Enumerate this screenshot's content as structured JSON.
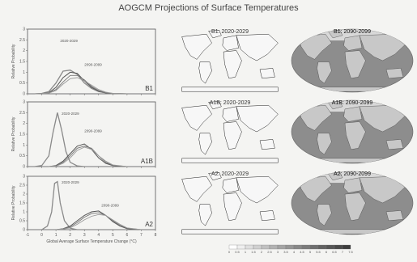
{
  "title": "AOGCM Projections of Surface Temperatures",
  "chart_data": [
    {
      "type": "line",
      "panel_label": "B1",
      "ylabel": "Relative Probability",
      "xlabel": "",
      "xlim": [
        -1,
        8
      ],
      "ylim": [
        0,
        3
      ],
      "yticks": [
        "0",
        "0.5",
        "1",
        "1.5",
        "2",
        "2.5",
        "3"
      ],
      "annotations": [
        {
          "text": "2020-2029",
          "x": 1.3,
          "y": 2.4
        },
        {
          "text": "2090-2099",
          "x": 3.0,
          "y": 1.3
        }
      ],
      "series": [
        {
          "x": [
            -0.5,
            0,
            0.5,
            1,
            1.5,
            2,
            2.5,
            3,
            3.5,
            4,
            4.5,
            5,
            6
          ],
          "y": [
            0,
            0.02,
            0.1,
            0.5,
            1.05,
            1.1,
            0.9,
            0.5,
            0.25,
            0.1,
            0.04,
            0.01,
            0
          ]
        },
        {
          "x": [
            -0.5,
            0,
            0.5,
            1,
            1.5,
            2,
            2.5,
            3,
            3.5,
            4,
            4.5,
            5,
            6
          ],
          "y": [
            0,
            0.01,
            0.05,
            0.3,
            0.75,
            1.0,
            0.95,
            0.6,
            0.3,
            0.12,
            0.05,
            0.01,
            0
          ]
        },
        {
          "x": [
            -0.5,
            0,
            0.5,
            1,
            1.5,
            2,
            2.5,
            3,
            3.5,
            4,
            4.5,
            5,
            6
          ],
          "y": [
            0,
            0.01,
            0.04,
            0.2,
            0.55,
            0.85,
            0.85,
            0.65,
            0.35,
            0.15,
            0.05,
            0.01,
            0
          ]
        },
        {
          "x": [
            -0.5,
            0,
            0.5,
            1,
            1.5,
            2,
            2.5,
            3,
            3.5,
            4,
            4.5,
            5,
            6
          ],
          "y": [
            0,
            0.01,
            0.03,
            0.15,
            0.45,
            0.7,
            0.75,
            0.6,
            0.4,
            0.2,
            0.08,
            0.02,
            0
          ]
        }
      ]
    },
    {
      "type": "line",
      "panel_label": "A1B",
      "ylabel": "Relative Probability",
      "xlabel": "",
      "xlim": [
        -1,
        8
      ],
      "ylim": [
        0,
        3
      ],
      "yticks": [
        "0",
        "0.5",
        "1",
        "1.5",
        "2",
        "2.5",
        "3"
      ],
      "annotations": [
        {
          "text": "2020-2029",
          "x": 1.4,
          "y": 2.4
        },
        {
          "text": "2090-2099",
          "x": 3.0,
          "y": 1.6
        }
      ],
      "series": [
        {
          "x": [
            -0.5,
            0,
            0.5,
            0.8,
            1.1,
            1.4,
            1.7,
            2,
            2.5,
            3
          ],
          "y": [
            0,
            0.05,
            0.5,
            1.6,
            2.5,
            1.7,
            0.7,
            0.2,
            0.03,
            0
          ]
        },
        {
          "x": [
            0.5,
            1,
            1.5,
            2,
            2.5,
            3,
            3.5,
            4,
            4.5,
            5,
            6
          ],
          "y": [
            0,
            0.05,
            0.25,
            0.6,
            0.95,
            1.05,
            0.8,
            0.4,
            0.15,
            0.05,
            0
          ]
        },
        {
          "x": [
            0.5,
            1,
            1.5,
            2,
            2.5,
            3,
            3.5,
            4,
            4.5,
            5,
            6
          ],
          "y": [
            0,
            0.03,
            0.2,
            0.5,
            0.85,
            0.95,
            0.85,
            0.5,
            0.2,
            0.06,
            0
          ]
        },
        {
          "x": [
            0.5,
            1,
            1.5,
            2,
            2.5,
            3,
            3.5,
            4,
            4.5,
            5,
            6
          ],
          "y": [
            0,
            0.02,
            0.15,
            0.4,
            0.75,
            0.9,
            0.8,
            0.5,
            0.25,
            0.08,
            0
          ]
        }
      ]
    },
    {
      "type": "line",
      "panel_label": "A2",
      "ylabel": "Relative Probability",
      "xlabel": "Global Average Surface Temperature Change (°C)",
      "xlim": [
        -1,
        8
      ],
      "ylim": [
        0,
        3
      ],
      "yticks": [
        "0",
        "0.5",
        "1",
        "1.5",
        "2",
        "2.5",
        "3"
      ],
      "xticks": [
        "-1",
        "0",
        "1",
        "2",
        "3",
        "4",
        "5",
        "6",
        "7",
        "8"
      ],
      "annotations": [
        {
          "text": "2020-2029",
          "x": 1.4,
          "y": 2.6
        },
        {
          "text": "2090-2099",
          "x": 4.2,
          "y": 1.3
        }
      ],
      "series": [
        {
          "x": [
            0,
            0.4,
            0.7,
            0.9,
            1.1,
            1.3,
            1.6,
            2,
            2.5
          ],
          "y": [
            0,
            0.2,
            1.0,
            2.6,
            2.7,
            1.5,
            0.5,
            0.08,
            0
          ]
        },
        {
          "x": [
            1,
            1.5,
            2,
            2.5,
            3,
            3.5,
            4,
            4.5,
            5,
            5.5,
            6,
            7
          ],
          "y": [
            0,
            0.05,
            0.2,
            0.5,
            0.8,
            1.0,
            1.05,
            0.8,
            0.45,
            0.2,
            0.06,
            0
          ]
        },
        {
          "x": [
            1,
            1.5,
            2,
            2.5,
            3,
            3.5,
            4,
            4.5,
            5,
            5.5,
            6,
            7
          ],
          "y": [
            0,
            0.04,
            0.15,
            0.4,
            0.7,
            0.9,
            0.95,
            0.8,
            0.5,
            0.25,
            0.08,
            0
          ]
        },
        {
          "x": [
            1,
            1.5,
            2,
            2.5,
            3,
            3.5,
            4,
            4.5,
            5,
            5.5,
            6,
            7
          ],
          "y": [
            0,
            0.03,
            0.1,
            0.3,
            0.55,
            0.75,
            0.85,
            0.8,
            0.55,
            0.3,
            0.1,
            0
          ]
        }
      ]
    }
  ],
  "maps": [
    {
      "label": "B1: 2020-2029",
      "style": "outline"
    },
    {
      "label": "B1: 2090-2099",
      "style": "filled"
    },
    {
      "label": "A1B: 2020-2029",
      "style": "outline"
    },
    {
      "label": "A1B: 2090-2099",
      "style": "filled"
    },
    {
      "label": "A2: 2020-2029",
      "style": "outline"
    },
    {
      "label": "A2: 2090-2099",
      "style": "filled"
    }
  ],
  "colorbar": {
    "ticks": [
      "0",
      "0.5",
      "1",
      "1.5",
      "2",
      "2.5",
      "3",
      "3.5",
      "4",
      "4.5",
      "5",
      "5.5",
      "6",
      "6.5",
      "7",
      "7.5"
    ],
    "colors": [
      "#ffffff",
      "#efefef",
      "#dfdfdf",
      "#d0d0d0",
      "#c0c0c0",
      "#b2b2b2",
      "#a4a4a4",
      "#969696",
      "#888888",
      "#7b7b7b",
      "#6e6e6e",
      "#616161",
      "#555555",
      "#494949",
      "#3d3d3d"
    ]
  },
  "colors": {
    "curve_primary": "#8a8a8a",
    "curve_secondary": "#555555",
    "map_ocean_filled": "#8d8d8d",
    "map_land_filled": "#c8c8c8",
    "map_outline": "#222222"
  }
}
